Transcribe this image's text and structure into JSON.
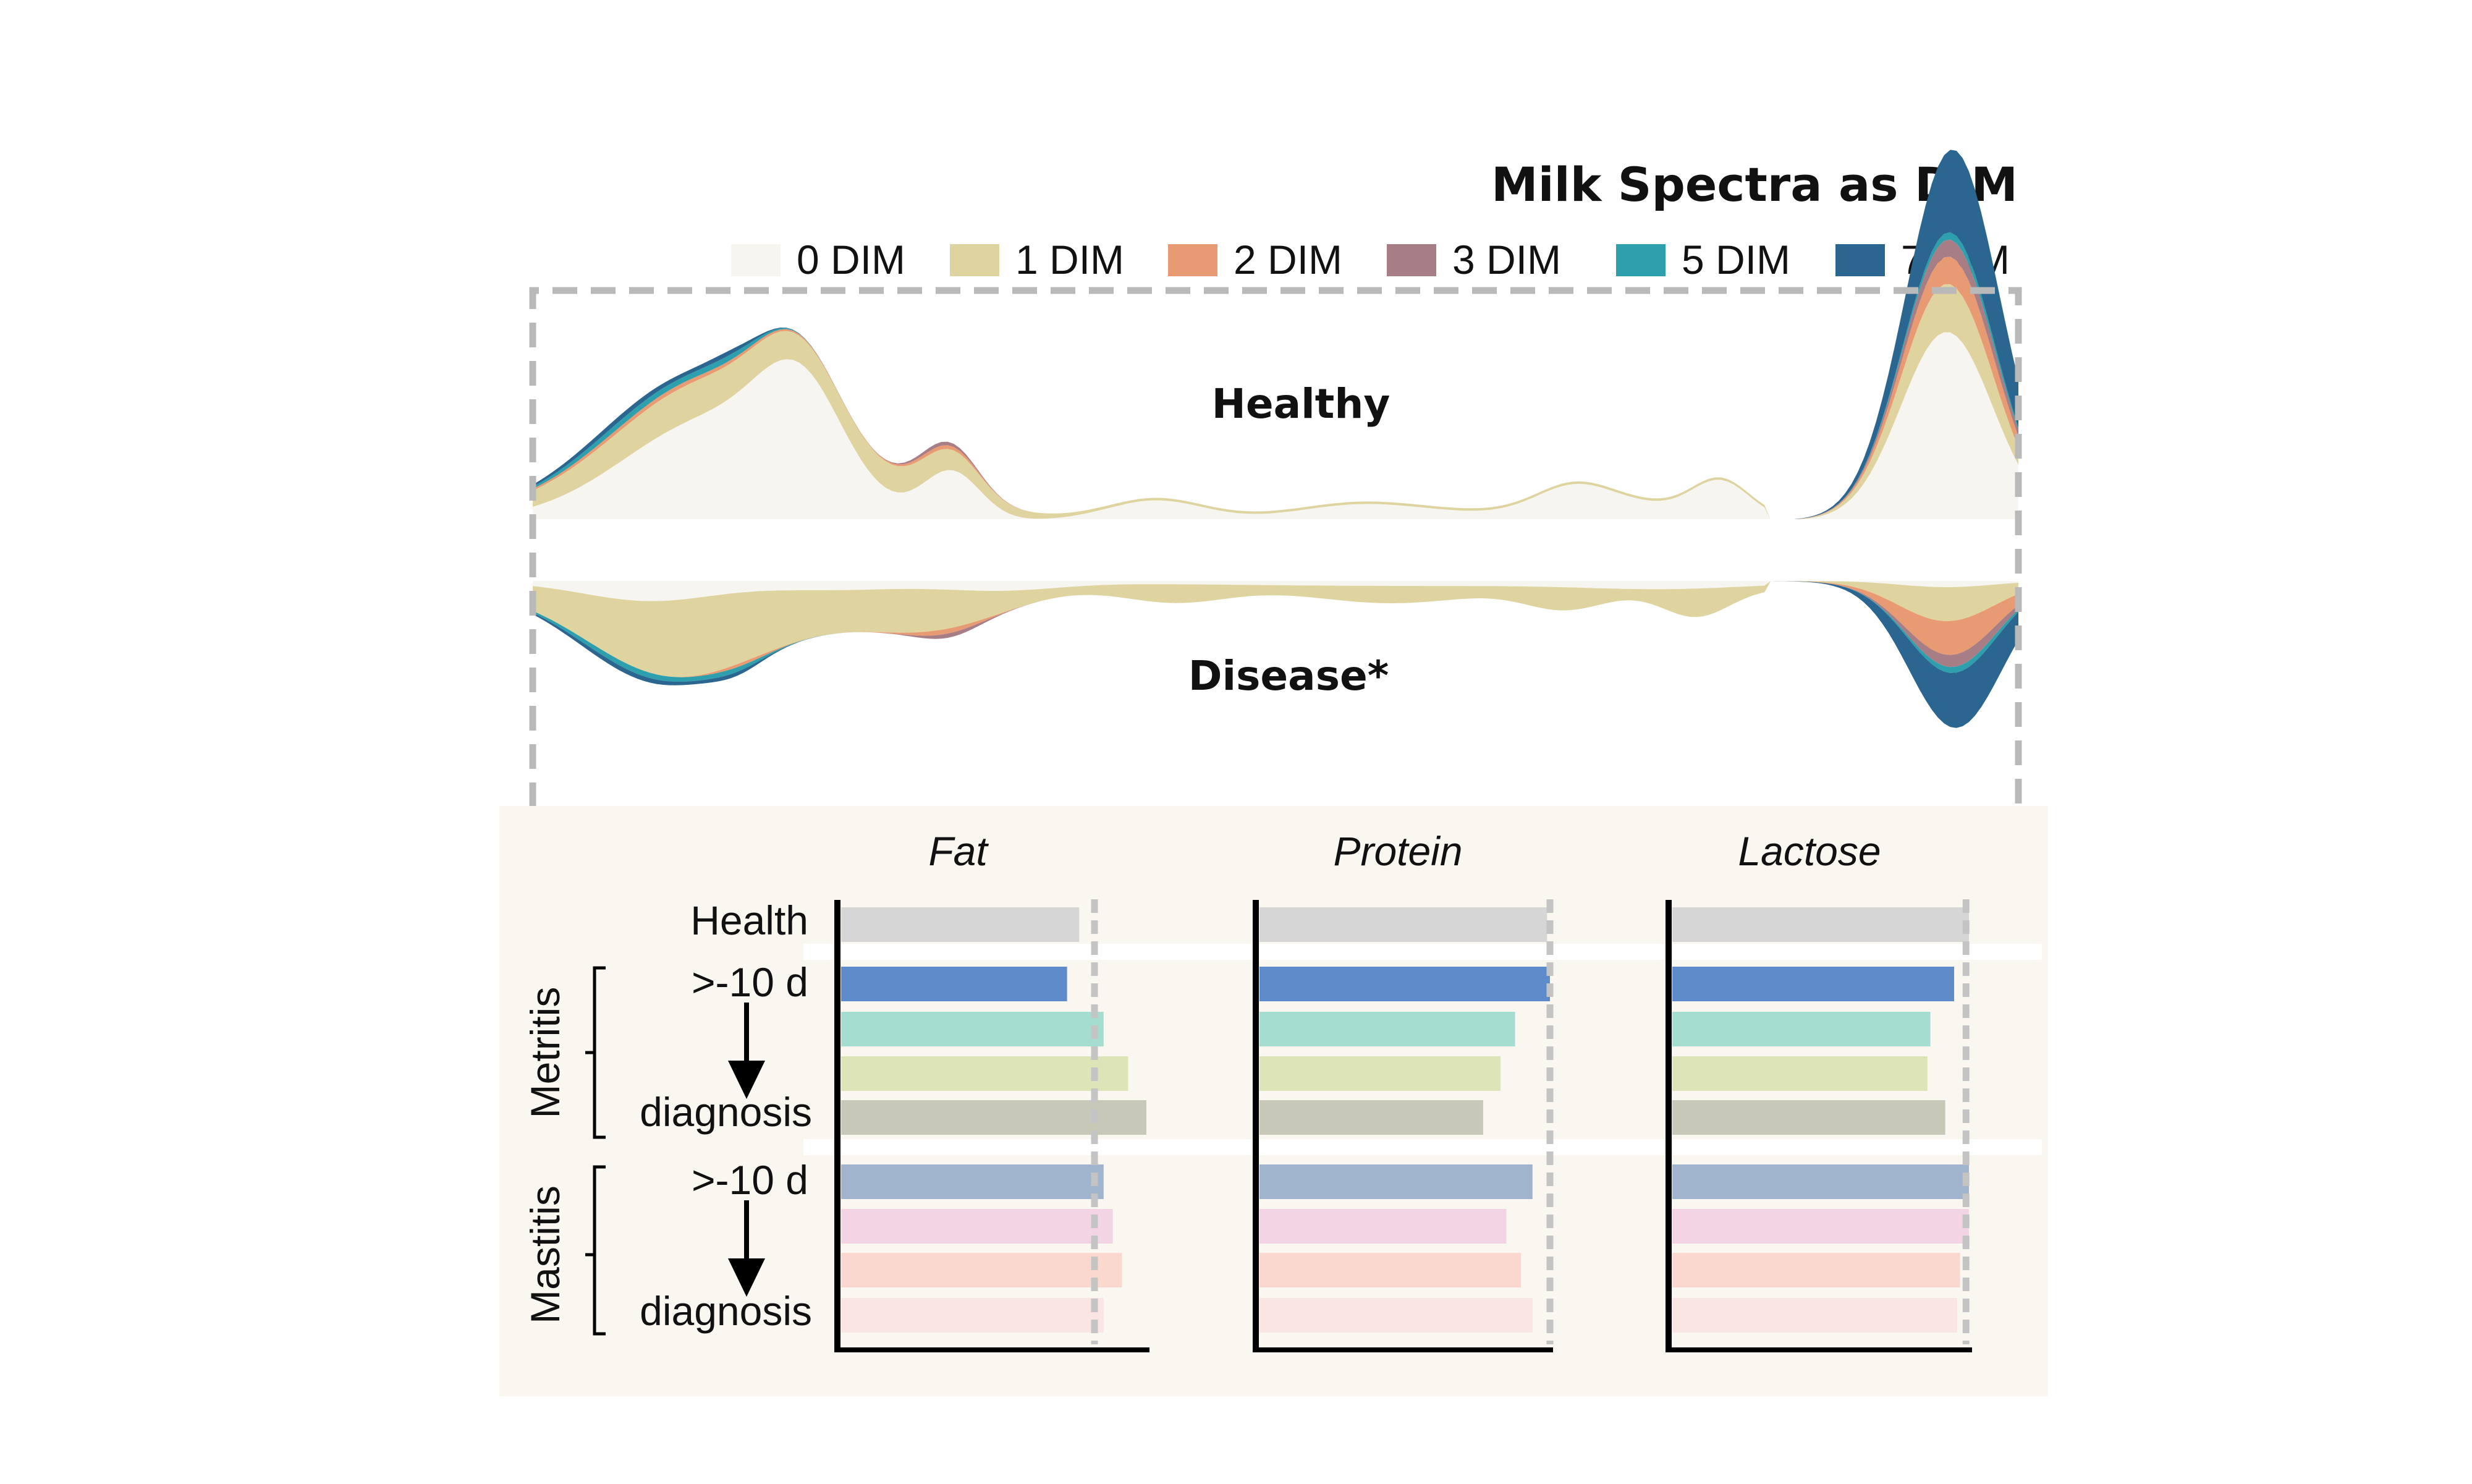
{
  "figure": {
    "title": "Milk Spectra as DIM",
    "legend": [
      {
        "label": "0 DIM",
        "color": "#f6f5f0"
      },
      {
        "label": "1 DIM",
        "color": "#dfd3a0"
      },
      {
        "label": "2 DIM",
        "color": "#e89a72"
      },
      {
        "label": "3 DIM",
        "color": "#a87e86"
      },
      {
        "label": "5 DIM",
        "color": "#2e9fac"
      },
      {
        "label": "7 DIM",
        "color": "#2a6690"
      }
    ]
  },
  "chart_data": [
    {
      "type": "area",
      "panels": [
        {
          "label": "Healthy",
          "direction": "up"
        },
        {
          "label": "Disease*",
          "direction": "down"
        }
      ],
      "series": [
        {
          "name": "0 DIM",
          "color": "#f6f5f0"
        },
        {
          "name": "1 DIM",
          "color": "#dfd3a0"
        },
        {
          "name": "2 DIM",
          "color": "#e89a72"
        },
        {
          "name": "3 DIM",
          "color": "#a87e86"
        },
        {
          "name": "5 DIM",
          "color": "#2e9fac"
        },
        {
          "name": "7 DIM",
          "color": "#2a6690"
        }
      ],
      "xlabel": "",
      "ylabel": ""
    },
    {
      "type": "bar",
      "orientation": "horizontal",
      "columns": [
        "Fat",
        "Protein",
        "Lactose"
      ],
      "groups": [
        {
          "label": "",
          "rows": [
            {
              "label": "Health",
              "color": "#d6d6d6"
            }
          ]
        },
        {
          "label": "Metritis",
          "start_label": ">-10 d",
          "end_label": "diagnosis",
          "rows": [
            {
              "color": "#5e8ccb"
            },
            {
              "color": "#a5ded1"
            },
            {
              "color": "#dde4b7"
            },
            {
              "color": "#c8c8b9"
            }
          ]
        },
        {
          "label": "Mastitis",
          "start_label": ">-10 d",
          "end_label": "diagnosis",
          "rows": [
            {
              "color": "#a1b4cd"
            },
            {
              "color": "#f3d4e5"
            },
            {
              "color": "#fad8cf"
            },
            {
              "color": "#fbe5e3"
            }
          ]
        }
      ],
      "values": {
        "Fat": [
          0.78,
          0.74,
          0.86,
          0.94,
          1.0,
          0.86,
          0.89,
          0.92,
          0.86
        ],
        "Protein": [
          0.99,
          1.0,
          0.88,
          0.83,
          0.77,
          0.94,
          0.85,
          0.9,
          0.94
        ],
        "Lactose": [
          1.0,
          0.95,
          0.87,
          0.86,
          0.92,
          1.0,
          1.0,
          0.97,
          0.96
        ]
      },
      "reference": {
        "Fat": 0.83,
        "Protein": 1.0,
        "Lactose": 0.99
      }
    }
  ]
}
